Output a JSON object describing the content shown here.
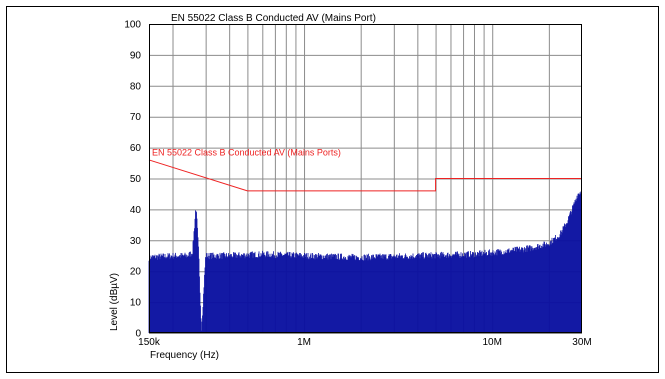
{
  "chart_data": {
    "type": "area",
    "title": "EN 55022 Class B Conducted AV (Mains Port)",
    "xlabel": "Frequency (Hz)",
    "ylabel": "Level (dBµV)",
    "x_scale": "log",
    "xlim": [
      150000,
      30000000
    ],
    "ylim": [
      0,
      100
    ],
    "y_ticks": [
      0,
      10,
      20,
      30,
      40,
      50,
      60,
      70,
      80,
      90,
      100
    ],
    "x_tick_labels": [
      {
        "value": 150000,
        "label": "150k"
      },
      {
        "value": 1000000,
        "label": "1M"
      },
      {
        "value": 10000000,
        "label": "10M"
      },
      {
        "value": 30000000,
        "label": "30M"
      }
    ],
    "grid": true,
    "series": [
      {
        "name": "EN 55022 Class B Conducted AV (Mains Ports)",
        "color": "#ee2222",
        "x": [
          150000,
          500000,
          500000,
          5000000,
          5000000,
          30000000
        ],
        "y": [
          56,
          46,
          46,
          46,
          50,
          50
        ]
      },
      {
        "color": "#0a10a0",
        "x": [
          150000,
          200000,
          240000,
          255000,
          262000,
          266000,
          270000,
          276000,
          285000,
          300000,
          400000,
          600000,
          1000000,
          2000000,
          4000000,
          8000000,
          12000000,
          16000000,
          20000000,
          23000000,
          25000000,
          27000000,
          28500000,
          30000000
        ],
        "y": [
          24.5,
          25,
          25,
          26,
          35,
          41,
          36,
          25,
          0.5,
          25,
          25,
          25.5,
          25,
          24.5,
          25,
          25.5,
          26.5,
          27.5,
          29,
          32,
          36,
          41,
          45,
          46
        ]
      }
    ]
  }
}
